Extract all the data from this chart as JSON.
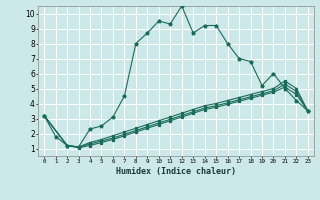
{
  "xlabel": "Humidex (Indice chaleur)",
  "bg_color": "#cce8e8",
  "grid_color": "#ffffff",
  "line_color": "#1a6b5a",
  "xlim": [
    -0.5,
    23.5
  ],
  "ylim": [
    0.5,
    10.5
  ],
  "xtick_labels": [
    "0",
    "1",
    "2",
    "3",
    "4",
    "5",
    "6",
    "7",
    "8",
    "9",
    "10",
    "11",
    "12",
    "13",
    "14",
    "15",
    "16",
    "17",
    "18",
    "19",
    "20",
    "21",
    "22",
    "23"
  ],
  "ytick_labels": [
    "1",
    "2",
    "3",
    "4",
    "5",
    "6",
    "7",
    "8",
    "9",
    "10"
  ],
  "series1_x": [
    0,
    1,
    2,
    3,
    4,
    5,
    6,
    7,
    8,
    9,
    10,
    11,
    12,
    13,
    14,
    15,
    16,
    17,
    18,
    19,
    20,
    21,
    22,
    23
  ],
  "series1_y": [
    3.2,
    1.8,
    1.2,
    1.1,
    2.3,
    2.5,
    3.1,
    4.5,
    8.0,
    8.7,
    9.5,
    9.3,
    10.5,
    8.7,
    9.2,
    9.2,
    8.0,
    7.0,
    6.8,
    5.2,
    6.0,
    5.0,
    4.2,
    3.5
  ],
  "series2_x": [
    0,
    2,
    3,
    4,
    5,
    6,
    7,
    8,
    9,
    10,
    11,
    12,
    13,
    14,
    15,
    16,
    17,
    18,
    19,
    20,
    21,
    22,
    23
  ],
  "series2_y": [
    3.2,
    1.2,
    1.1,
    1.4,
    1.6,
    1.85,
    2.1,
    2.35,
    2.6,
    2.85,
    3.1,
    3.35,
    3.6,
    3.85,
    4.0,
    4.2,
    4.4,
    4.6,
    4.8,
    5.0,
    5.5,
    5.0,
    3.5
  ],
  "series3_x": [
    0,
    2,
    3,
    4,
    5,
    6,
    7,
    8,
    9,
    10,
    11,
    12,
    13,
    14,
    15,
    16,
    17,
    18,
    19,
    20,
    21,
    22,
    23
  ],
  "series3_y": [
    3.2,
    1.2,
    1.1,
    1.3,
    1.5,
    1.7,
    1.95,
    2.2,
    2.45,
    2.7,
    2.95,
    3.2,
    3.45,
    3.7,
    3.85,
    4.05,
    4.25,
    4.45,
    4.65,
    4.85,
    5.3,
    4.8,
    3.5
  ],
  "series4_x": [
    0,
    2,
    3,
    4,
    5,
    6,
    7,
    8,
    9,
    10,
    11,
    12,
    13,
    14,
    15,
    16,
    17,
    18,
    19,
    20,
    21,
    22,
    23
  ],
  "series4_y": [
    3.2,
    1.2,
    1.05,
    1.2,
    1.4,
    1.6,
    1.85,
    2.1,
    2.35,
    2.6,
    2.85,
    3.1,
    3.35,
    3.6,
    3.75,
    3.95,
    4.15,
    4.35,
    4.55,
    4.75,
    5.1,
    4.6,
    3.5
  ]
}
